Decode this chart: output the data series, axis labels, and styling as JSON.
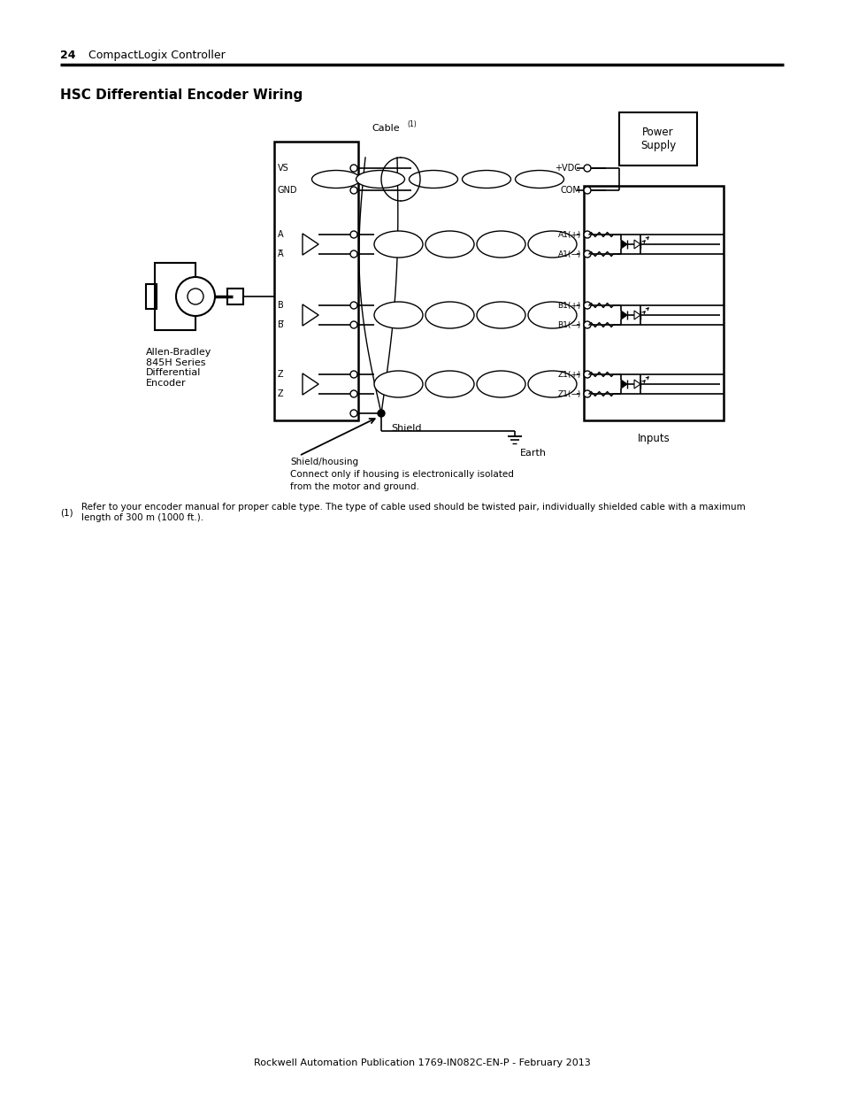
{
  "page_number": "24",
  "page_label": "CompactLogix Controller",
  "title": "HSC Differential Encoder Wiring",
  "footer": "Rockwell Automation Publication 1769-IN082C-EN-P - February 2013",
  "footnote_num": "(1)",
  "footnote_text": "Refer to your encoder manual for proper cable type. The type of cable used should be twisted pair, individually shielded cable with a maximum\nlength of 300 m (1000 ft.).",
  "power_supply_label": "Power\nSupply",
  "inputs_label": "Inputs",
  "earth_label": "Earth",
  "shield_label": "Shield",
  "shield_housing_line1": "Shield/housing",
  "shield_housing_line2": "Connect only if housing is electronically isolated",
  "shield_housing_line3": "from the motor and ground.",
  "encoder_label": "Allen-Bradley\n845H Series\nDifferential\nEncoder",
  "vs_label": "VS",
  "gnd_label": "GND",
  "vdc_label": "+VDC",
  "com_label": "COM",
  "cable_label": "Cable",
  "cable_superscript": "(1)",
  "channels": [
    {
      "pos": "A",
      "neg": "A̅",
      "out_pos": "A1(+)",
      "out_neg": "A1(−)"
    },
    {
      "pos": "B",
      "neg": "B̅",
      "out_pos": "B1(+)",
      "out_neg": "B1(−)"
    },
    {
      "pos": "Z",
      "neg": "Z̅",
      "out_pos": "Z1(+)",
      "out_neg": "Z1(−)"
    }
  ],
  "bg_color": "#ffffff",
  "lc": "#000000"
}
